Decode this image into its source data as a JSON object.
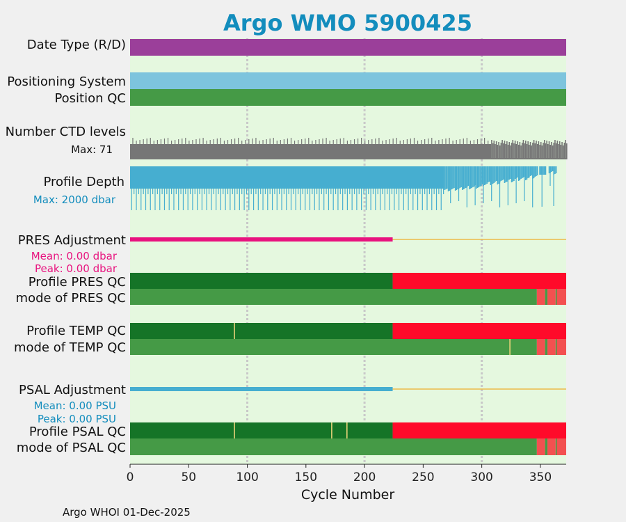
{
  "colors": {
    "plot_bg": "#e5f8df",
    "page_bg": "#f0f0f0",
    "title": "#138dbd",
    "data_type": "#9b3f9a",
    "pos_system": "#7dc4dd",
    "qc_good": "#459a46",
    "qc_dark": "#157427",
    "qc_bad": "#ff0a2a",
    "qc_bad_light": "#f35050",
    "ctd": "#767676",
    "depth": "#46aed0",
    "pres_adj": "#e8127e",
    "psal_adj": "#46aed0",
    "adj_tail": "#ecbb48",
    "marker": "#e9d37a",
    "grid": "#c8c8c8",
    "text": "#111111"
  },
  "chart_data": {
    "type": "bar",
    "title": "Argo WMO 5900425",
    "xlabel": "Cycle Number",
    "footer": "Argo WHOI 01-Dec-2025",
    "xlim": [
      0,
      372
    ],
    "xticks": [
      0,
      50,
      100,
      150,
      200,
      250,
      300,
      350
    ],
    "grid_x": [
      100,
      200,
      300
    ],
    "rows": {
      "data_type": {
        "label": "Date Type (R/D)"
      },
      "positioning": {
        "label": "Positioning System"
      },
      "position_qc": {
        "label": "Position QC"
      },
      "ctd_levels": {
        "label": "Number CTD levels",
        "max_label": "Max: 71",
        "max": 71
      },
      "profile_depth": {
        "label": "Profile Depth",
        "max_label": "Max: 2000 dbar",
        "max": 2000
      },
      "pres_adj": {
        "label": "PRES Adjustment",
        "mean_label": "Mean: 0.00 dbar",
        "peak_label": "Peak: 0.00 dbar",
        "adjusted_until": 224
      },
      "profile_pres_qc": {
        "label": "Profile PRES QC",
        "segments": [
          [
            0,
            224,
            "qc_dark"
          ],
          [
            224,
            372,
            "qc_bad"
          ]
        ]
      },
      "mode_pres_qc": {
        "label": "mode of PRES QC",
        "segments": [
          [
            0,
            347,
            "qc_good"
          ],
          [
            347,
            354,
            "qc_bad_light"
          ],
          [
            354,
            356,
            "qc_good"
          ],
          [
            356,
            363,
            "qc_bad_light"
          ],
          [
            363,
            364,
            "qc_good"
          ],
          [
            364,
            372,
            "qc_bad_light"
          ]
        ]
      },
      "profile_temp_qc": {
        "label": "Profile TEMP QC",
        "segments": [
          [
            0,
            224,
            "qc_dark"
          ],
          [
            224,
            372,
            "qc_bad"
          ]
        ],
        "markers": [
          89
        ]
      },
      "mode_temp_qc": {
        "label": "mode of TEMP QC",
        "segments": [
          [
            0,
            347,
            "qc_good"
          ],
          [
            347,
            354,
            "qc_bad_light"
          ],
          [
            354,
            356,
            "qc_good"
          ],
          [
            356,
            363,
            "qc_bad_light"
          ],
          [
            363,
            364,
            "qc_good"
          ],
          [
            364,
            372,
            "qc_bad_light"
          ]
        ],
        "markers": [
          324
        ]
      },
      "psal_adj": {
        "label": "PSAL Adjustment",
        "mean_label": "Mean: 0.00 PSU",
        "peak_label": "Peak: 0.00 PSU",
        "adjusted_until": 224
      },
      "profile_psal_qc": {
        "label": "Profile PSAL QC",
        "segments": [
          [
            0,
            224,
            "qc_dark"
          ],
          [
            224,
            372,
            "qc_bad"
          ]
        ],
        "markers": [
          89,
          172,
          185
        ]
      },
      "mode_psal_qc": {
        "label": "mode of PSAL QC",
        "segments": [
          [
            0,
            347,
            "qc_good"
          ],
          [
            347,
            354,
            "qc_bad_light"
          ],
          [
            354,
            356,
            "qc_good"
          ],
          [
            356,
            363,
            "qc_bad_light"
          ],
          [
            363,
            364,
            "qc_good"
          ],
          [
            364,
            372,
            "qc_bad_light"
          ]
        ]
      }
    }
  }
}
